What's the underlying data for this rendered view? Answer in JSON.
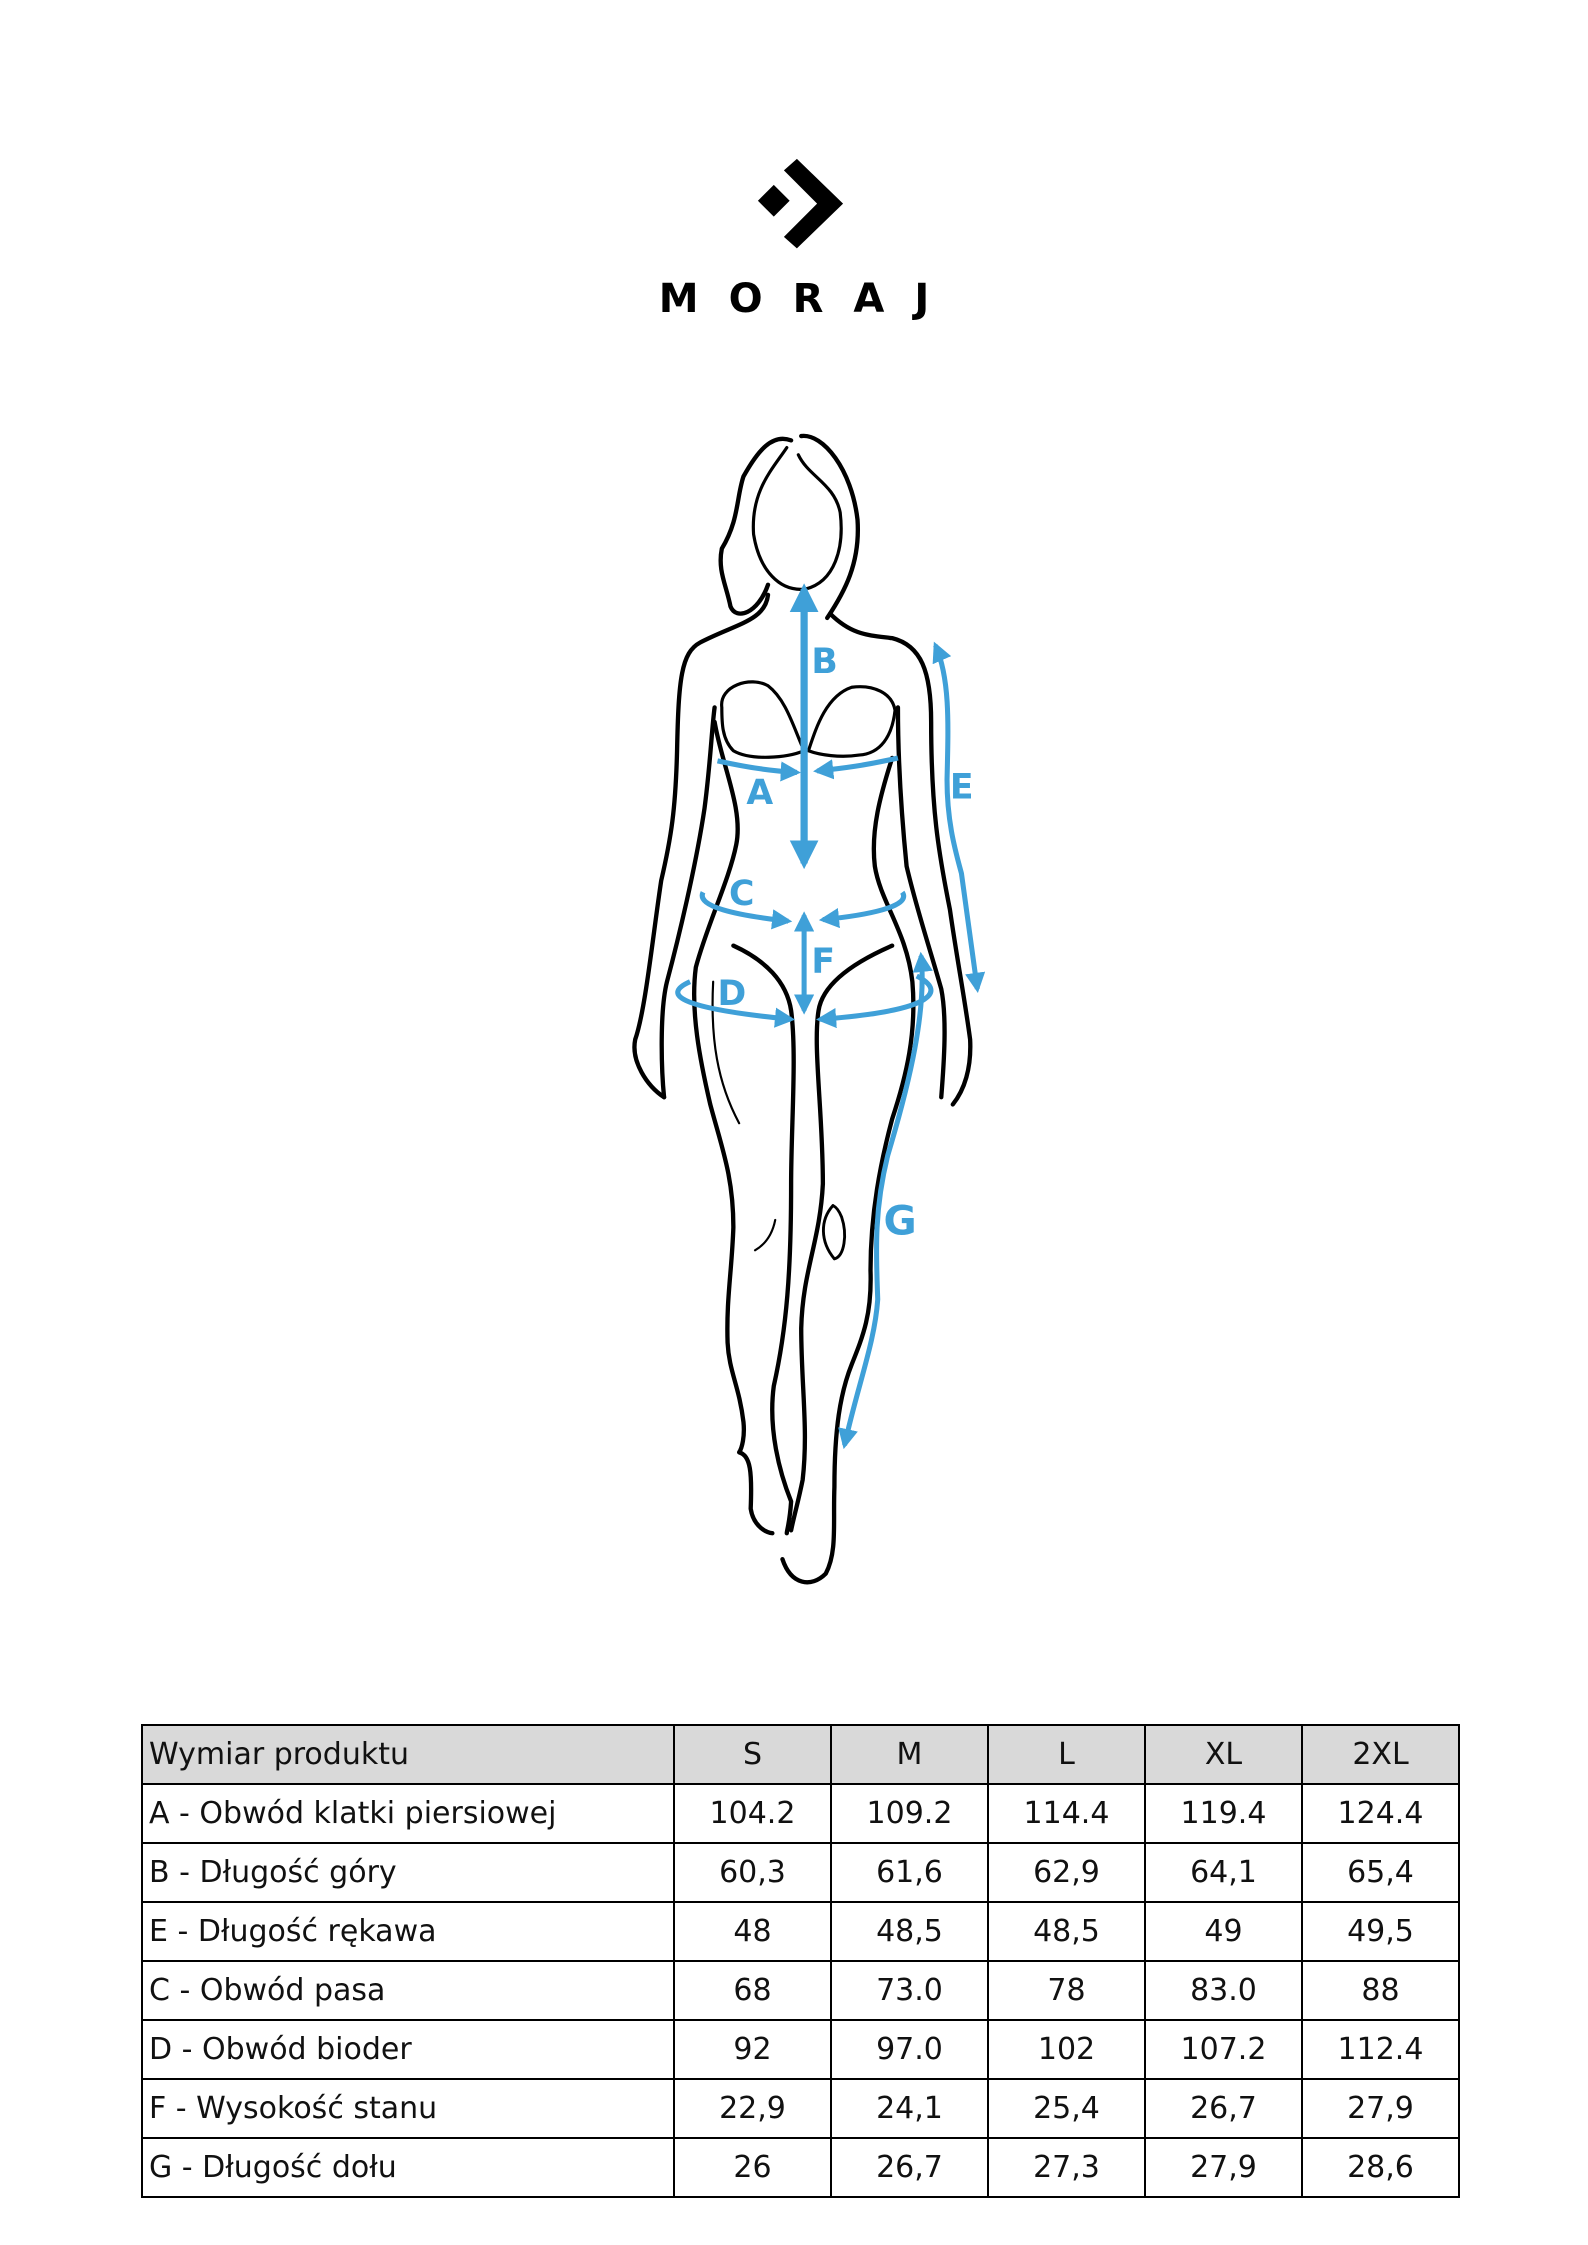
{
  "brand": {
    "name": "MORAJ",
    "logo_icon": "chevron-diamond-logo"
  },
  "figure": {
    "labels": [
      "A",
      "B",
      "C",
      "D",
      "E",
      "F",
      "G"
    ],
    "accent_color": "#3fa0d8"
  },
  "table": {
    "headers": [
      "Wymiar produktu",
      "S",
      "M",
      "L",
      "XL",
      "2XL"
    ],
    "rows": [
      [
        "A - Obwód klatki piersiowej",
        "104.2",
        "109.2",
        "114.4",
        "119.4",
        "124.4"
      ],
      [
        "B - Długość góry",
        "60,3",
        "61,6",
        "62,9",
        "64,1",
        "65,4"
      ],
      [
        "E - Długość rękawa",
        "48",
        "48,5",
        "48,5",
        "49",
        "49,5"
      ],
      [
        "C - Obwód pasa",
        "68",
        "73.0",
        "78",
        "83.0",
        "88"
      ],
      [
        "D - Obwód bioder",
        "92",
        "97.0",
        "102",
        "107.2",
        "112.4"
      ],
      [
        "F - Wysokość stanu",
        "22,9",
        "24,1",
        "25,4",
        "26,7",
        "27,9"
      ],
      [
        "G - Długość dołu",
        "26",
        "26,7",
        "27,3",
        "27,9",
        "28,6"
      ]
    ]
  }
}
